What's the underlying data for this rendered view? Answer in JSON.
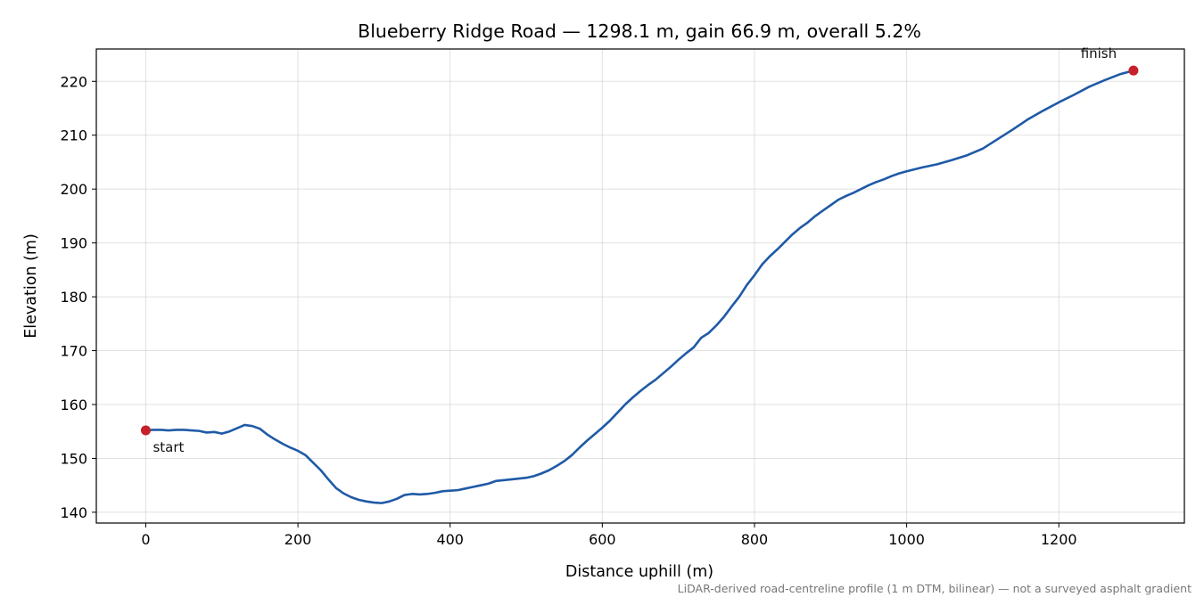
{
  "chart_data": {
    "type": "line",
    "title": "Blueberry Ridge Road — 1298.1 m, gain 66.9 m, overall 5.2%",
    "xlabel": "Distance uphill (m)",
    "ylabel": "Elevation (m)",
    "xlim": [
      -65,
      1365
    ],
    "ylim": [
      138,
      226
    ],
    "xticks": [
      0,
      200,
      400,
      600,
      800,
      1000,
      1200
    ],
    "yticks": [
      140,
      150,
      160,
      170,
      180,
      190,
      200,
      210,
      220
    ],
    "grid": true,
    "line_color": "#1f5aa6",
    "marker_color": "#c8202a",
    "series": [
      {
        "x": [
          0,
          10,
          20,
          30,
          40,
          50,
          60,
          70,
          80,
          90,
          100,
          110,
          120,
          130,
          140,
          150,
          160,
          170,
          180,
          190,
          200,
          210,
          220,
          230,
          240,
          250,
          260,
          270,
          280,
          290,
          300,
          310,
          320,
          330,
          340,
          350,
          360,
          370,
          380,
          390,
          400,
          410,
          420,
          430,
          440,
          450,
          460,
          480,
          500,
          510,
          520,
          530,
          540,
          550,
          560,
          570,
          580,
          590,
          600,
          610,
          620,
          630,
          640,
          650,
          660,
          670,
          680,
          690,
          700,
          710,
          720,
          730,
          740,
          750,
          760,
          770,
          780,
          790,
          800,
          810,
          820,
          830,
          840,
          850,
          860,
          870,
          880,
          890,
          900,
          910,
          920,
          930,
          940,
          950,
          960,
          970,
          980,
          990,
          1000,
          1020,
          1040,
          1060,
          1080,
          1100,
          1120,
          1140,
          1160,
          1180,
          1200,
          1220,
          1240,
          1260,
          1280,
          1298.1
        ],
        "y": [
          155.2,
          155.3,
          155.3,
          155.2,
          155.3,
          155.3,
          155.2,
          155.1,
          154.8,
          154.9,
          154.6,
          155.0,
          155.6,
          156.2,
          156.0,
          155.5,
          154.4,
          153.5,
          152.7,
          152.0,
          151.4,
          150.6,
          149.2,
          147.8,
          146.1,
          144.5,
          143.5,
          142.8,
          142.3,
          142.0,
          141.8,
          141.7,
          142.0,
          142.5,
          143.2,
          143.4,
          143.3,
          143.4,
          143.6,
          143.9,
          144.0,
          144.1,
          144.4,
          144.7,
          145.0,
          145.3,
          145.8,
          146.1,
          146.4,
          146.7,
          147.2,
          147.8,
          148.6,
          149.5,
          150.6,
          152.0,
          153.3,
          154.5,
          155.7,
          157.0,
          158.5,
          160.0,
          161.3,
          162.5,
          163.6,
          164.6,
          165.8,
          167.0,
          168.3,
          169.5,
          170.6,
          172.4,
          173.3,
          174.7,
          176.3,
          178.2,
          180.0,
          182.2,
          184.0,
          186.0,
          187.5,
          188.8,
          190.2,
          191.6,
          192.8,
          193.8,
          195.0,
          196.0,
          197.0,
          198.0,
          198.7,
          199.3,
          200.0,
          200.7,
          201.3,
          201.8,
          202.4,
          202.9,
          203.3,
          204.0,
          204.6,
          205.4,
          206.3,
          207.5,
          209.3,
          211.1,
          213.0,
          214.6,
          216.1,
          217.5,
          219.0,
          220.2,
          221.3,
          222.0
        ]
      }
    ],
    "annotations": [
      {
        "text": "start",
        "x": 0,
        "y": 155.2,
        "anchor": "below-right"
      },
      {
        "text": "finish",
        "x": 1298.1,
        "y": 222.0,
        "anchor": "above-left"
      }
    ],
    "footnote": "LiDAR-derived road-centreline profile (1 m DTM, bilinear) — not a surveyed asphalt gradient"
  }
}
